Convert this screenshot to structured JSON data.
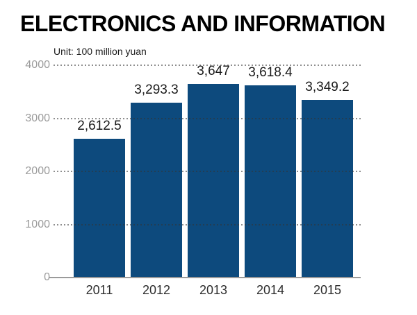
{
  "page": {
    "title": "ELECTRONICS AND INFORMATION",
    "unit_label": "Unit: 100 million yuan"
  },
  "colors": {
    "bar": "#0d4a7d",
    "grid_dots": "#333333",
    "axis_tick_text": "#9b9b9b",
    "baseline": "#9a9a9a",
    "value_label_text": "#1a1a1a",
    "x_tick_text": "#2e2e2e",
    "title_text": "#000000"
  },
  "chart_data": {
    "type": "bar",
    "title": "ELECTRONICS AND INFORMATION",
    "subtitle": "Unit: 100 million yuan",
    "categories": [
      "2011",
      "2012",
      "2013",
      "2014",
      "2015"
    ],
    "values": [
      2612.5,
      3293.3,
      3647,
      3618.4,
      3349.2
    ],
    "value_labels": [
      "2,612.5",
      "3,293.3",
      "3,647",
      "3,618.4",
      "3,349.2"
    ],
    "xlabel": "",
    "ylabel": "Unit: 100 million yuan",
    "ylim": [
      0,
      4000
    ],
    "yticks": [
      0,
      1000,
      2000,
      3000,
      4000
    ],
    "grid": "horizontal-dotted-over-bars",
    "legend": "none",
    "bar_color": "#0d4a7d"
  }
}
